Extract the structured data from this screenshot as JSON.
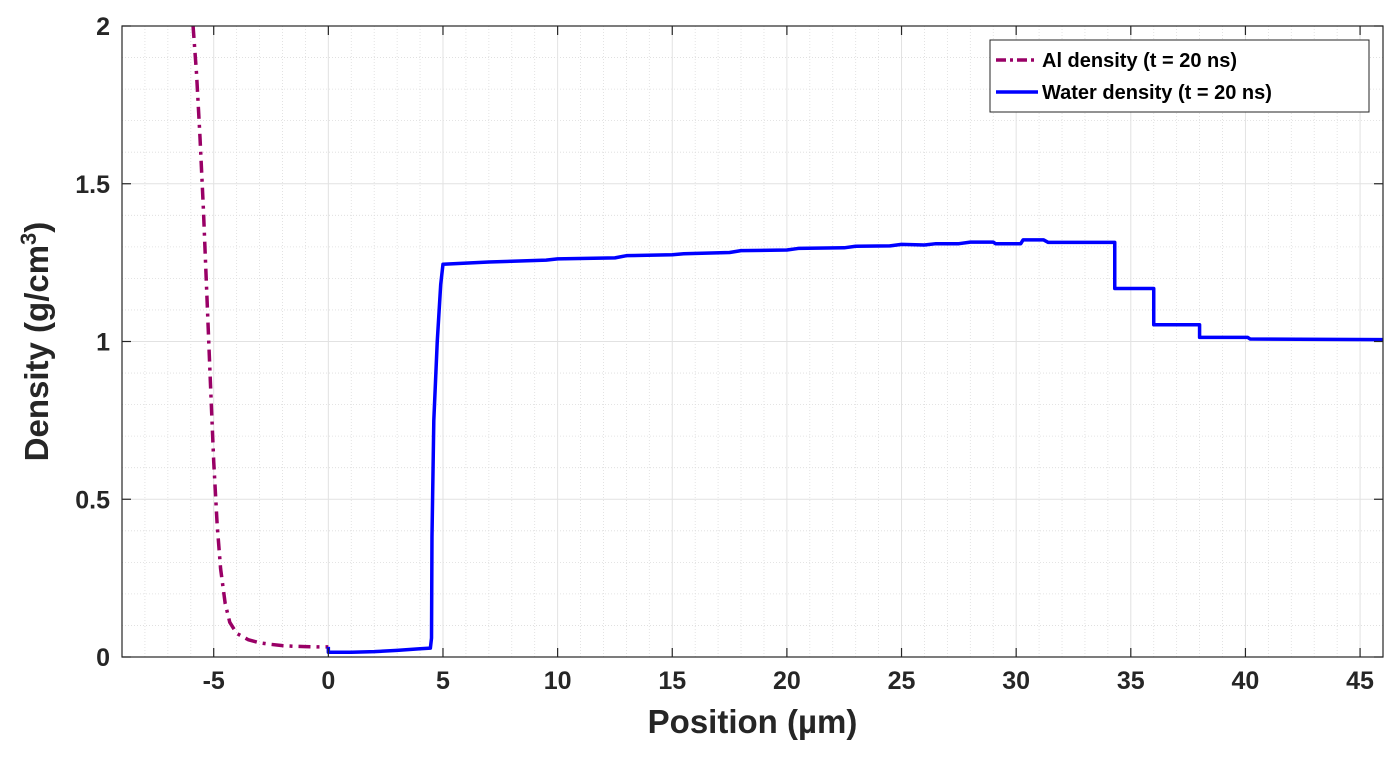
{
  "chart_data": {
    "type": "line",
    "xlabel": "Position (µm)",
    "ylabel": "Density (g/cm",
    "ylabel_sup": "3",
    "ylabel_close": ")",
    "xlim": [
      -9,
      46
    ],
    "ylim": [
      0,
      2
    ],
    "x_ticks": [
      -5,
      0,
      5,
      10,
      15,
      20,
      25,
      30,
      35,
      40,
      45
    ],
    "x_tick_labels": [
      "-5",
      "0",
      "5",
      "10",
      "15",
      "20",
      "25",
      "30",
      "35",
      "40",
      "45"
    ],
    "y_ticks": [
      0,
      0.5,
      1,
      1.5,
      2
    ],
    "y_tick_labels": [
      "0",
      "0.5",
      "1",
      "1.5",
      "2"
    ],
    "grid": true,
    "minor_grid": true,
    "legend_position": "top-right",
    "series": [
      {
        "name": "Al density (t = 20 ns)",
        "color": "#990066",
        "line_style": "dashdot",
        "points": [
          [
            -5.9,
            2.0
          ],
          [
            -5.75,
            1.85
          ],
          [
            -5.6,
            1.65
          ],
          [
            -5.45,
            1.42
          ],
          [
            -5.3,
            1.15
          ],
          [
            -5.15,
            0.88
          ],
          [
            -5.0,
            0.62
          ],
          [
            -4.85,
            0.42
          ],
          [
            -4.7,
            0.28
          ],
          [
            -4.5,
            0.17
          ],
          [
            -4.3,
            0.11
          ],
          [
            -4.0,
            0.075
          ],
          [
            -3.5,
            0.055
          ],
          [
            -3.0,
            0.045
          ],
          [
            -2.5,
            0.04
          ],
          [
            -2.0,
            0.036
          ],
          [
            -1.5,
            0.034
          ],
          [
            -1.0,
            0.033
          ],
          [
            -0.5,
            0.032
          ],
          [
            0.0,
            0.032
          ]
        ]
      },
      {
        "name": "Water density (t = 20 ns)",
        "color": "#0000ff",
        "line_style": "solid",
        "points": [
          [
            0.0,
            0.032
          ],
          [
            0.0,
            0.015
          ],
          [
            1.0,
            0.015
          ],
          [
            2.0,
            0.017
          ],
          [
            3.0,
            0.021
          ],
          [
            4.0,
            0.026
          ],
          [
            4.45,
            0.028
          ],
          [
            4.5,
            0.06
          ],
          [
            4.52,
            0.38
          ],
          [
            4.6,
            0.75
          ],
          [
            4.75,
            1.0
          ],
          [
            4.9,
            1.18
          ],
          [
            5.0,
            1.245
          ],
          [
            7.0,
            1.252
          ],
          [
            9.5,
            1.258
          ],
          [
            10.0,
            1.262
          ],
          [
            12.5,
            1.265
          ],
          [
            13.0,
            1.272
          ],
          [
            15.0,
            1.275
          ],
          [
            15.5,
            1.278
          ],
          [
            17.5,
            1.282
          ],
          [
            18.0,
            1.288
          ],
          [
            20.0,
            1.29
          ],
          [
            20.5,
            1.295
          ],
          [
            22.5,
            1.297
          ],
          [
            23.0,
            1.302
          ],
          [
            24.5,
            1.303
          ],
          [
            25.0,
            1.308
          ],
          [
            26.0,
            1.306
          ],
          [
            26.5,
            1.31
          ],
          [
            27.5,
            1.31
          ],
          [
            28.0,
            1.315
          ],
          [
            29.0,
            1.315
          ],
          [
            29.1,
            1.31
          ],
          [
            30.2,
            1.31
          ],
          [
            30.3,
            1.322
          ],
          [
            31.2,
            1.322
          ],
          [
            31.4,
            1.314
          ],
          [
            34.3,
            1.314
          ],
          [
            34.3,
            1.168
          ],
          [
            36.0,
            1.168
          ],
          [
            36.0,
            1.053
          ],
          [
            38.0,
            1.053
          ],
          [
            38.0,
            1.013
          ],
          [
            40.1,
            1.013
          ],
          [
            40.2,
            1.008
          ],
          [
            46.0,
            1.006
          ]
        ]
      }
    ]
  }
}
